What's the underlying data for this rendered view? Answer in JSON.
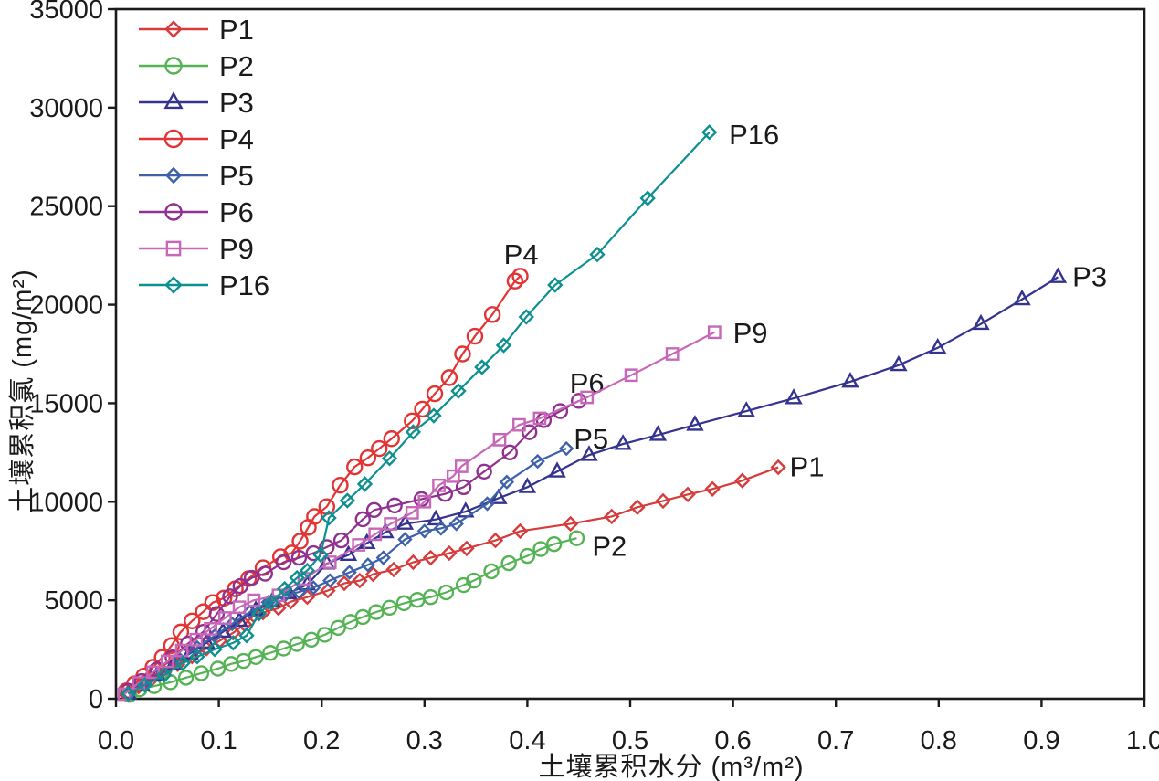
{
  "chart_data": {
    "type": "line",
    "title": "",
    "xlabel": "土壤累积水分 (m³/m²)",
    "ylabel": "土壤累积氯 (mg/m²)",
    "xlim": [
      0.0,
      1.0
    ],
    "ylim": [
      0,
      35000
    ],
    "grid": "off",
    "legend_position": "top-left-inside",
    "x_ticks": [
      "0.0",
      "0.1",
      "0.2",
      "0.3",
      "0.4",
      "0.5",
      "0.6",
      "0.7",
      "0.8",
      "0.9",
      "1.0"
    ],
    "y_ticks": [
      "0",
      "5000",
      "10000",
      "15000",
      "20000",
      "25000",
      "30000",
      "35000"
    ],
    "axis_color": "#1a1a1a",
    "series": [
      {
        "name": "P1",
        "color": "#d63c3c",
        "marker": "diamond",
        "marker_size": 7,
        "label": {
          "x": 0.655,
          "y": 11800,
          "anchor": "start"
        },
        "points": [
          [
            0.012,
            300
          ],
          [
            0.022,
            620
          ],
          [
            0.034,
            960
          ],
          [
            0.047,
            1350
          ],
          [
            0.06,
            1750
          ],
          [
            0.074,
            2150
          ],
          [
            0.088,
            2550
          ],
          [
            0.101,
            2950
          ],
          [
            0.114,
            3350
          ],
          [
            0.125,
            3780
          ],
          [
            0.134,
            4230
          ],
          [
            0.143,
            4370
          ],
          [
            0.158,
            4600
          ],
          [
            0.17,
            4930
          ],
          [
            0.186,
            5160
          ],
          [
            0.206,
            5490
          ],
          [
            0.222,
            5860
          ],
          [
            0.237,
            6000
          ],
          [
            0.25,
            6320
          ],
          [
            0.27,
            6560
          ],
          [
            0.289,
            6930
          ],
          [
            0.306,
            7160
          ],
          [
            0.324,
            7390
          ],
          [
            0.341,
            7630
          ],
          [
            0.369,
            8040
          ],
          [
            0.393,
            8510
          ],
          [
            0.442,
            8880
          ],
          [
            0.482,
            9250
          ],
          [
            0.507,
            9720
          ],
          [
            0.532,
            10040
          ],
          [
            0.556,
            10370
          ],
          [
            0.58,
            10650
          ],
          [
            0.609,
            11070
          ],
          [
            0.644,
            11750
          ]
        ]
      },
      {
        "name": "P2",
        "color": "#55b355",
        "marker": "circle",
        "marker_size": 7.5,
        "label": {
          "x": 0.463,
          "y": 7760,
          "anchor": "start"
        },
        "points": [
          [
            0.013,
            200
          ],
          [
            0.023,
            480
          ],
          [
            0.037,
            640
          ],
          [
            0.053,
            840
          ],
          [
            0.068,
            1070
          ],
          [
            0.083,
            1300
          ],
          [
            0.099,
            1530
          ],
          [
            0.112,
            1770
          ],
          [
            0.124,
            1920
          ],
          [
            0.136,
            2120
          ],
          [
            0.15,
            2330
          ],
          [
            0.163,
            2550
          ],
          [
            0.176,
            2780
          ],
          [
            0.19,
            3000
          ],
          [
            0.203,
            3250
          ],
          [
            0.216,
            3600
          ],
          [
            0.228,
            3900
          ],
          [
            0.24,
            4150
          ],
          [
            0.253,
            4400
          ],
          [
            0.266,
            4620
          ],
          [
            0.28,
            4850
          ],
          [
            0.293,
            5020
          ],
          [
            0.306,
            5160
          ],
          [
            0.321,
            5400
          ],
          [
            0.338,
            5770
          ],
          [
            0.348,
            6000
          ],
          [
            0.365,
            6470
          ],
          [
            0.382,
            6880
          ],
          [
            0.4,
            7250
          ],
          [
            0.413,
            7600
          ],
          [
            0.426,
            7850
          ],
          [
            0.448,
            8150
          ]
        ]
      },
      {
        "name": "P3",
        "color": "#343390",
        "marker": "triangle",
        "marker_size": 8.5,
        "label": {
          "x": 0.93,
          "y": 21450,
          "anchor": "start"
        },
        "points": [
          [
            0.012,
            250
          ],
          [
            0.025,
            700
          ],
          [
            0.04,
            1200
          ],
          [
            0.056,
            1750
          ],
          [
            0.072,
            2300
          ],
          [
            0.088,
            2850
          ],
          [
            0.104,
            3400
          ],
          [
            0.12,
            3950
          ],
          [
            0.136,
            4500
          ],
          [
            0.152,
            4950
          ],
          [
            0.168,
            5350
          ],
          [
            0.186,
            5800
          ],
          [
            0.205,
            6860
          ],
          [
            0.226,
            7300
          ],
          [
            0.244,
            7900
          ],
          [
            0.262,
            8450
          ],
          [
            0.281,
            8880
          ],
          [
            0.311,
            9100
          ],
          [
            0.34,
            9500
          ],
          [
            0.372,
            10180
          ],
          [
            0.4,
            10740
          ],
          [
            0.429,
            11530
          ],
          [
            0.46,
            12370
          ],
          [
            0.493,
            12930
          ],
          [
            0.527,
            13390
          ],
          [
            0.563,
            13900
          ],
          [
            0.613,
            14600
          ],
          [
            0.659,
            15250
          ],
          [
            0.714,
            16090
          ],
          [
            0.761,
            16930
          ],
          [
            0.799,
            17810
          ],
          [
            0.841,
            19020
          ],
          [
            0.881,
            20270
          ],
          [
            0.916,
            21400
          ]
        ]
      },
      {
        "name": "P4",
        "color": "#e23434",
        "marker": "circle",
        "marker_size": 8,
        "label": {
          "x": 0.394,
          "y": 22580,
          "anchor": "middle"
        },
        "points": [
          [
            0.01,
            400
          ],
          [
            0.018,
            760
          ],
          [
            0.027,
            1150
          ],
          [
            0.036,
            1600
          ],
          [
            0.045,
            2100
          ],
          [
            0.054,
            2700
          ],
          [
            0.063,
            3390
          ],
          [
            0.074,
            3950
          ],
          [
            0.085,
            4420
          ],
          [
            0.094,
            4880
          ],
          [
            0.105,
            5110
          ],
          [
            0.116,
            5580
          ],
          [
            0.129,
            6100
          ],
          [
            0.143,
            6650
          ],
          [
            0.16,
            7210
          ],
          [
            0.171,
            7400
          ],
          [
            0.179,
            8000
          ],
          [
            0.187,
            8700
          ],
          [
            0.193,
            9250
          ],
          [
            0.205,
            9750
          ],
          [
            0.218,
            10840
          ],
          [
            0.232,
            11770
          ],
          [
            0.245,
            12230
          ],
          [
            0.256,
            12700
          ],
          [
            0.268,
            13200
          ],
          [
            0.288,
            14100
          ],
          [
            0.298,
            14700
          ],
          [
            0.31,
            15480
          ],
          [
            0.324,
            16300
          ],
          [
            0.337,
            17500
          ],
          [
            0.349,
            18400
          ],
          [
            0.366,
            19500
          ],
          [
            0.388,
            21200
          ],
          [
            0.393,
            21450
          ]
        ]
      },
      {
        "name": "P5",
        "color": "#3e62aa",
        "marker": "diamond",
        "marker_size": 6.5,
        "label": {
          "x": 0.462,
          "y": 13210,
          "anchor": "middle"
        },
        "points": [
          [
            0.012,
            280
          ],
          [
            0.028,
            800
          ],
          [
            0.045,
            1400
          ],
          [
            0.062,
            2000
          ],
          [
            0.079,
            2600
          ],
          [
            0.096,
            3200
          ],
          [
            0.113,
            3800
          ],
          [
            0.13,
            4400
          ],
          [
            0.148,
            4900
          ],
          [
            0.164,
            5250
          ],
          [
            0.178,
            5420
          ],
          [
            0.192,
            5640
          ],
          [
            0.208,
            6000
          ],
          [
            0.227,
            6420
          ],
          [
            0.245,
            6800
          ],
          [
            0.26,
            7160
          ],
          [
            0.281,
            8090
          ],
          [
            0.3,
            8510
          ],
          [
            0.316,
            8650
          ],
          [
            0.331,
            8880
          ],
          [
            0.361,
            9900
          ],
          [
            0.38,
            11000
          ],
          [
            0.41,
            12050
          ],
          [
            0.438,
            12700
          ]
        ]
      },
      {
        "name": "P6",
        "color": "#90308f",
        "marker": "circle",
        "marker_size": 7.5,
        "label": {
          "x": 0.458,
          "y": 16050,
          "anchor": "middle"
        },
        "points": [
          [
            0.012,
            400
          ],
          [
            0.025,
            900
          ],
          [
            0.04,
            1500
          ],
          [
            0.055,
            2100
          ],
          [
            0.07,
            2800
          ],
          [
            0.085,
            3400
          ],
          [
            0.098,
            4300
          ],
          [
            0.111,
            5200
          ],
          [
            0.121,
            5720
          ],
          [
            0.132,
            6140
          ],
          [
            0.145,
            6350
          ],
          [
            0.163,
            6930
          ],
          [
            0.178,
            7160
          ],
          [
            0.192,
            7390
          ],
          [
            0.205,
            7700
          ],
          [
            0.219,
            8040
          ],
          [
            0.24,
            9110
          ],
          [
            0.251,
            9580
          ],
          [
            0.271,
            9810
          ],
          [
            0.297,
            10130
          ],
          [
            0.32,
            10400
          ],
          [
            0.338,
            10740
          ],
          [
            0.358,
            11530
          ],
          [
            0.383,
            12500
          ],
          [
            0.402,
            13530
          ],
          [
            0.416,
            14140
          ],
          [
            0.432,
            14600
          ],
          [
            0.45,
            15120
          ]
        ]
      },
      {
        "name": "P9",
        "color": "#c767b8",
        "marker": "square",
        "marker_size": 6.5,
        "label": {
          "x": 0.6,
          "y": 18600,
          "anchor": "start"
        },
        "points": [
          [
            0.008,
            230
          ],
          [
            0.022,
            800
          ],
          [
            0.036,
            1350
          ],
          [
            0.05,
            1900
          ],
          [
            0.064,
            2450
          ],
          [
            0.078,
            3000
          ],
          [
            0.092,
            3550
          ],
          [
            0.106,
            4100
          ],
          [
            0.12,
            4650
          ],
          [
            0.134,
            5000
          ],
          [
            0.158,
            5250
          ],
          [
            0.183,
            6090
          ],
          [
            0.208,
            6930
          ],
          [
            0.236,
            7810
          ],
          [
            0.252,
            8350
          ],
          [
            0.267,
            8880
          ],
          [
            0.288,
            9440
          ],
          [
            0.3,
            10000
          ],
          [
            0.314,
            10830
          ],
          [
            0.328,
            11300
          ],
          [
            0.336,
            11800
          ],
          [
            0.373,
            13150
          ],
          [
            0.392,
            13900
          ],
          [
            0.412,
            14230
          ],
          [
            0.458,
            15300
          ],
          [
            0.501,
            16420
          ],
          [
            0.541,
            17500
          ],
          [
            0.582,
            18600
          ]
        ]
      },
      {
        "name": "P16",
        "color": "#0f9090",
        "marker": "diamond",
        "marker_size": 7,
        "label": {
          "x": 0.596,
          "y": 28650,
          "anchor": "start"
        },
        "points": [
          [
            0.012,
            250
          ],
          [
            0.028,
            700
          ],
          [
            0.047,
            1210
          ],
          [
            0.065,
            1810
          ],
          [
            0.079,
            2140
          ],
          [
            0.096,
            2510
          ],
          [
            0.114,
            2840
          ],
          [
            0.127,
            3210
          ],
          [
            0.139,
            4320
          ],
          [
            0.151,
            4880
          ],
          [
            0.164,
            5580
          ],
          [
            0.176,
            6140
          ],
          [
            0.186,
            6510
          ],
          [
            0.199,
            7300
          ],
          [
            0.207,
            9180
          ],
          [
            0.225,
            10060
          ],
          [
            0.242,
            10900
          ],
          [
            0.266,
            12200
          ],
          [
            0.289,
            13540
          ],
          [
            0.309,
            14370
          ],
          [
            0.333,
            15620
          ],
          [
            0.356,
            16830
          ],
          [
            0.377,
            17940
          ],
          [
            0.399,
            19380
          ],
          [
            0.427,
            21000
          ],
          [
            0.468,
            22550
          ],
          [
            0.517,
            25400
          ],
          [
            0.577,
            28750
          ]
        ]
      }
    ]
  }
}
